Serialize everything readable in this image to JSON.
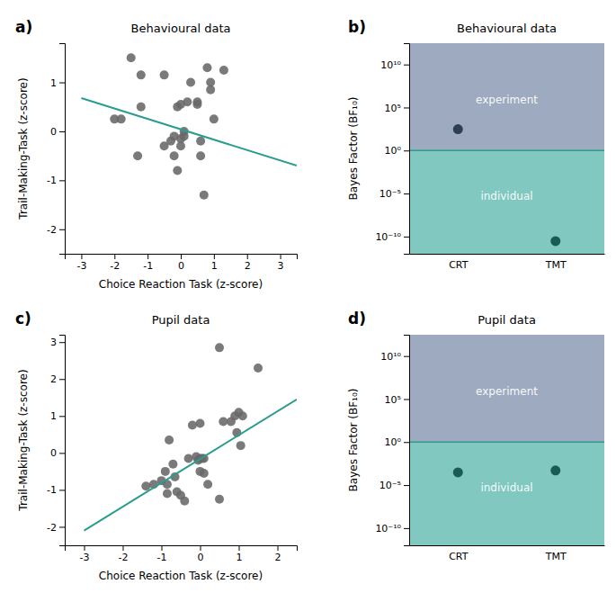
{
  "chart_data": [
    {
      "type": "scatter",
      "title": "Behavioural data",
      "annotations": [
        "a)"
      ],
      "xlabel": "Choice Reaction Task (z-score)",
      "ylabel": "Trail-Making-Task (z-score)",
      "series": [
        {
          "type": "scatter",
          "color": "#686868",
          "x": [
            -2.0,
            -1.8,
            -1.5,
            -1.3,
            -1.2,
            -1.2,
            -0.5,
            -0.5,
            -0.3,
            -0.2,
            -0.2,
            -0.1,
            -0.1,
            0.0,
            0.0,
            0.0,
            0.1,
            0.1,
            0.2,
            0.3,
            0.5,
            0.5,
            0.6,
            0.6,
            0.8,
            0.9,
            0.9,
            1.0,
            1.3,
            0.7
          ],
          "values": [
            0.25,
            0.25,
            1.5,
            -0.5,
            0.5,
            1.15,
            1.15,
            -0.3,
            -0.2,
            -0.1,
            -0.5,
            0.5,
            -0.8,
            0.55,
            -0.3,
            -0.15,
            0.0,
            -0.1,
            0.6,
            1.0,
            0.6,
            0.55,
            -0.2,
            -0.5,
            1.3,
            0.85,
            1.0,
            0.25,
            1.25,
            -1.3
          ]
        },
        {
          "type": "line",
          "color": "#2a9d8f",
          "x": [
            -3.0,
            3.5
          ],
          "values": [
            0.68,
            -0.7
          ]
        }
      ],
      "xlim": [
        -3.5,
        3.5
      ],
      "xticks": [
        -3,
        -2,
        -1,
        0,
        1,
        2,
        3
      ],
      "ylim": [
        -2.5,
        1.8
      ],
      "yticks": [
        -2,
        -1,
        0,
        1
      ],
      "grid": false
    },
    {
      "type": "scatter",
      "title": "Behavioural data",
      "annotations": [
        "b)"
      ],
      "ylabel": "Bayes Factor (BF₁₀)",
      "categories": [
        "CRT",
        "TMT"
      ],
      "series": [
        {
          "type": "scatter",
          "values": [
            300,
            3e-11
          ],
          "colors": [
            "#2d3f55",
            "#1a5c55"
          ]
        }
      ],
      "log": "y",
      "ylim": [
        1e-12,
        3000000000000.0
      ],
      "yticks": [
        {
          "value": 1e-10,
          "label": "10⁻¹⁰"
        },
        {
          "value": 1e-05,
          "label": "10⁻⁵"
        },
        {
          "value": 1,
          "label": "10⁰"
        },
        {
          "value": 100000.0,
          "label": "10⁵"
        },
        {
          "value": 10000000000.0,
          "label": "10¹⁰"
        }
      ],
      "threshold": {
        "value": 1.0,
        "color": "#2a9d8f"
      },
      "regions": [
        {
          "label": "experiment",
          "color": "#9daabf"
        },
        {
          "label": "individual",
          "color": "#80c8c0"
        }
      ],
      "grid": false
    },
    {
      "type": "scatter",
      "title": "Pupil data",
      "annotations": [
        "c)"
      ],
      "xlabel": "Choice Reaction Task (z-score)",
      "ylabel": "Trail-Making-Task (z-score)",
      "series": [
        {
          "type": "scatter",
          "color": "#686868",
          "x": [
            -1.4,
            -1.2,
            -1.0,
            -0.9,
            -0.85,
            -0.85,
            -0.8,
            -0.7,
            -0.65,
            -0.6,
            -0.5,
            -0.4,
            -0.3,
            -0.2,
            -0.1,
            -0.05,
            0.0,
            0.0,
            0.0,
            0.05,
            0.1,
            0.1,
            0.2,
            0.5,
            0.6,
            0.8,
            0.9,
            0.95,
            1.0,
            1.05,
            1.1,
            1.5,
            0.5
          ],
          "values": [
            -0.9,
            -0.85,
            -0.75,
            -0.5,
            -1.1,
            -0.85,
            0.35,
            -0.3,
            -0.65,
            -1.05,
            -1.15,
            -1.3,
            -0.15,
            0.75,
            -0.1,
            -0.2,
            -0.15,
            0.8,
            -0.5,
            -0.15,
            -0.15,
            -0.55,
            -0.85,
            -1.25,
            0.85,
            0.85,
            1.0,
            0.55,
            1.1,
            0.2,
            1.0,
            2.3,
            2.85
          ]
        },
        {
          "type": "line",
          "color": "#2a9d8f",
          "x": [
            -3.0,
            2.5
          ],
          "values": [
            -2.1,
            1.45
          ]
        }
      ],
      "xlim": [
        -3.5,
        2.5
      ],
      "xticks": [
        -3,
        -2,
        -1,
        0,
        1,
        2
      ],
      "ylim": [
        -2.5,
        3.2
      ],
      "yticks": [
        -2,
        -1,
        0,
        1,
        2,
        3
      ],
      "grid": false
    },
    {
      "type": "scatter",
      "title": "Pupil data",
      "annotations": [
        "d)"
      ],
      "ylabel": "Bayes Factor (BF₁₀)",
      "categories": [
        "CRT",
        "TMT"
      ],
      "series": [
        {
          "type": "scatter",
          "values": [
            0.0003,
            0.0005
          ],
          "colors": [
            "#1a5c55",
            "#1a5c55"
          ]
        }
      ],
      "log": "y",
      "ylim": [
        1e-12,
        3000000000000.0
      ],
      "yticks": [
        {
          "value": 1e-10,
          "label": "10⁻¹⁰"
        },
        {
          "value": 1e-05,
          "label": "10⁻⁵"
        },
        {
          "value": 1,
          "label": "10⁰"
        },
        {
          "value": 100000.0,
          "label": "10⁵"
        },
        {
          "value": 10000000000.0,
          "label": "10¹⁰"
        }
      ],
      "threshold": {
        "value": 1.0,
        "color": "#2a9d8f"
      },
      "regions": [
        {
          "label": "experiment",
          "color": "#9daabf"
        },
        {
          "label": "individual",
          "color": "#80c8c0"
        }
      ],
      "grid": false
    }
  ]
}
